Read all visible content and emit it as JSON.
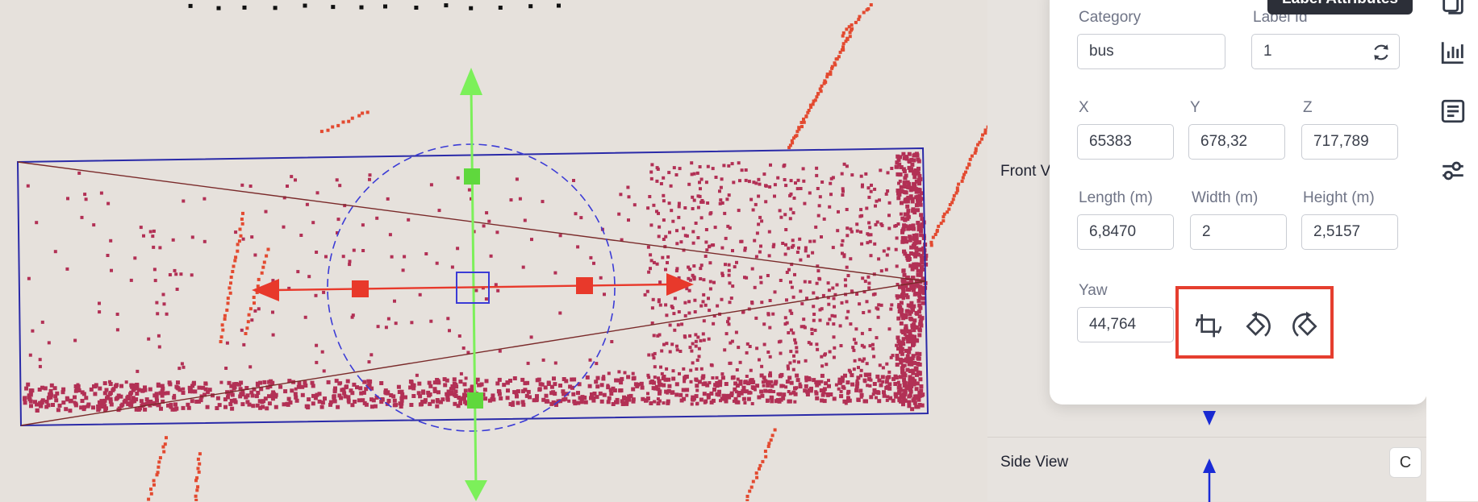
{
  "popup": {
    "tooltip": "Label Attributes",
    "category_label": "Category",
    "category_value": "bus",
    "label_id_label": "Label Id",
    "label_id_value": "1",
    "x_label": "X",
    "x_value": "65383",
    "y_label": "Y",
    "y_value": "678,32",
    "z_label": "Z",
    "z_value": "717,789",
    "length_label": "Length (m)",
    "length_value": "6,8470",
    "width_label": "Width (m)",
    "width_value": "2",
    "height_label": "Height (m)",
    "height_value": "2,5157",
    "yaw_label": "Yaw",
    "yaw_value": "44,764"
  },
  "views": {
    "front_view_label": "Front V",
    "side_view_label": "Side View",
    "reset_label": "C"
  },
  "icons": {
    "refresh": "refresh-icon",
    "rotate_reset": "rotate-reset-icon",
    "rotate_left": "rotate-left-icon",
    "rotate_right": "rotate-right-icon",
    "copy": "copy-icon",
    "chart": "chart-icon",
    "list": "list-icon",
    "sliders": "sliders-icon"
  },
  "colors": {
    "box_outline": "#2a2aa8",
    "points": "#b23055",
    "x_axis": "#e8392b",
    "y_axis": "#7cf05a",
    "highlight": "#e53e2f"
  }
}
